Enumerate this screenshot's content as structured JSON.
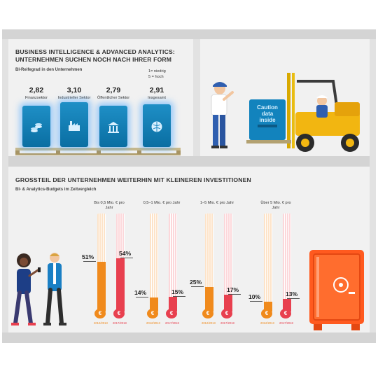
{
  "top": {
    "title_line1": "BUSINESS INTELLIGENCE & ADVANCED ANALYTICS:",
    "title_line2": "UNTERNEHMEN SUCHEN NOCH NACH IHRER FORM",
    "subtitle": "BI-Reifegrad in den Unternehmen",
    "scale_line1": "1= niedrig",
    "scale_line2": "5 = hoch",
    "crate_sign": [
      "Caution",
      "data",
      "inside"
    ]
  },
  "bottom": {
    "title": "GROSSTEIL DER UNTERNEHMEN WEITERHIN MIT KLEINEREN INVESTITIONEN",
    "subtitle": "BI- & Analytics-Budgets im Zeitvergleich",
    "year_labels": [
      "2012/2013",
      "2017/2018"
    ]
  },
  "chart_data": [
    {
      "type": "bar",
      "title": "BI-Reifegrad in den Unternehmen",
      "categories": [
        "Finanzsektor",
        "Industrieller Sektor",
        "Öffentlicher Sektor",
        "Insgesamt"
      ],
      "values": [
        2.82,
        3.1,
        2.79,
        2.91
      ],
      "value_labels": [
        "2,82",
        "3,10",
        "2,79",
        "2,91"
      ],
      "scale": [
        1,
        5
      ]
    },
    {
      "type": "bar",
      "title": "BI- & Analytics-Budgets im Zeitvergleich",
      "categories": [
        "Bis 0,5 Mio. € pro Jahr",
        "0,5–1 Mio. € pro Jahr",
        "1–5 Mio. € pro Jahr",
        "Über 5 Mio. € pro Jahr"
      ],
      "series": [
        {
          "name": "2012/2013",
          "values": [
            51,
            14,
            25,
            10
          ],
          "labels": [
            "51%",
            "14%",
            "25%",
            "10%"
          ],
          "color": "#f08a1c"
        },
        {
          "name": "2017/2018",
          "values": [
            54,
            15,
            17,
            13
          ],
          "labels": [
            "54%",
            "15%",
            "17%",
            "13%"
          ],
          "color": "#e8404f"
        }
      ],
      "ylim": [
        0,
        100
      ]
    }
  ]
}
